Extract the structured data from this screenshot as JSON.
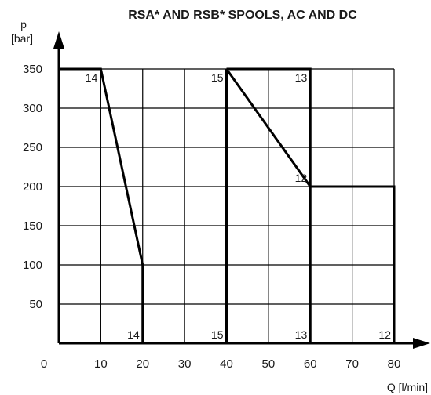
{
  "chart_data": {
    "type": "line",
    "title": "RSA* AND RSB* SPOOLS, AC AND DC",
    "xlabel": "Q [l/min]",
    "ylabel_line1": "p",
    "ylabel_line2": "[bar]",
    "xlim": [
      0,
      80
    ],
    "ylim": [
      0,
      350
    ],
    "x_ticks": [
      "0",
      "10",
      "20",
      "30",
      "40",
      "50",
      "60",
      "70",
      "80"
    ],
    "y_ticks": [
      "50",
      "100",
      "150",
      "200",
      "250",
      "300",
      "350"
    ],
    "grid": true,
    "series": [
      {
        "name": "14",
        "points": [
          [
            0,
            350
          ],
          [
            10,
            350
          ],
          [
            20,
            100
          ],
          [
            20,
            0
          ]
        ]
      },
      {
        "name": "15",
        "points": [
          [
            40,
            0
          ],
          [
            40,
            350
          ]
        ]
      },
      {
        "name": "13",
        "points": [
          [
            40,
            350
          ],
          [
            60,
            350
          ],
          [
            60,
            0
          ]
        ]
      },
      {
        "name": "12",
        "points": [
          [
            40,
            350
          ],
          [
            60,
            200
          ],
          [
            80,
            200
          ],
          [
            80,
            0
          ]
        ]
      }
    ],
    "curve_labels": [
      {
        "text": "14",
        "x": 10,
        "y": 350,
        "pos": "below-left"
      },
      {
        "text": "15",
        "x": 40,
        "y": 350,
        "pos": "below-left"
      },
      {
        "text": "13",
        "x": 60,
        "y": 350,
        "pos": "below-left"
      },
      {
        "text": "12",
        "x": 60,
        "y": 200,
        "pos": "above-left"
      },
      {
        "text": "14",
        "x": 20,
        "y": 0,
        "pos": "above-left"
      },
      {
        "text": "15",
        "x": 40,
        "y": 0,
        "pos": "above-left"
      },
      {
        "text": "13",
        "x": 60,
        "y": 0,
        "pos": "above-left"
      },
      {
        "text": "12",
        "x": 80,
        "y": 0,
        "pos": "above-left"
      }
    ]
  }
}
